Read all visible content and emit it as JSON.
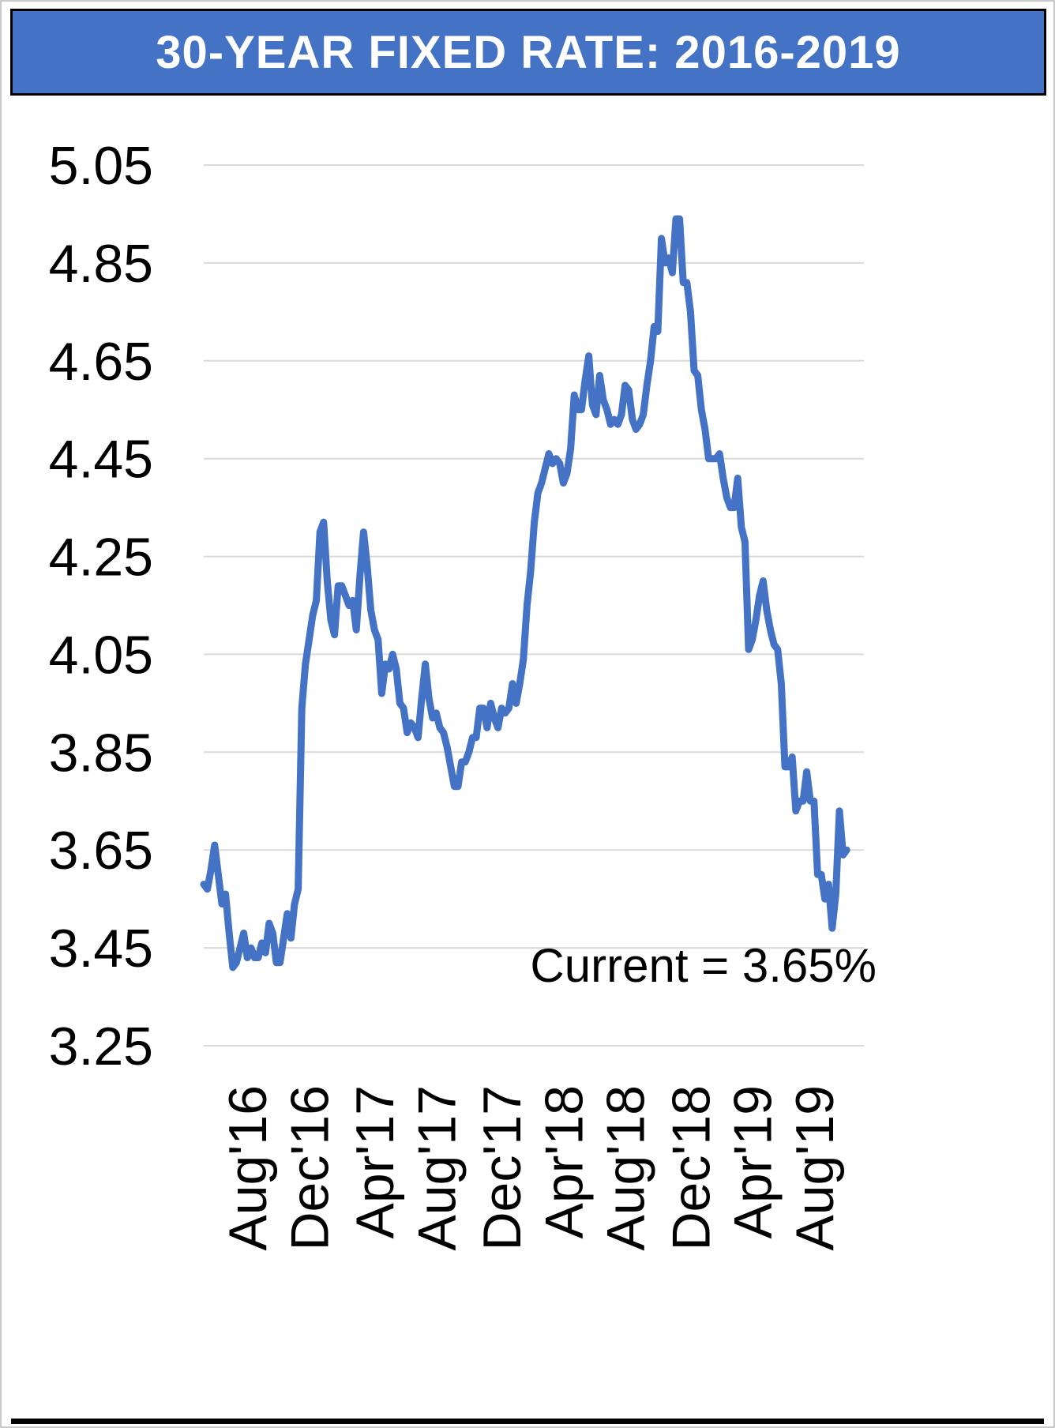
{
  "chart_data": {
    "type": "line",
    "title": "30-YEAR FIXED RATE: 2016-2019",
    "xlabel": "",
    "ylabel": "",
    "ylim": [
      3.25,
      5.05
    ],
    "yticks": [
      5.05,
      4.85,
      4.65,
      4.45,
      4.25,
      4.05,
      3.85,
      3.65,
      3.45,
      3.25
    ],
    "grid": "horizontal",
    "legend": "none",
    "x_description": "weekly 30-year fixed mortgage rate observations, mid-2016 through early Oct 2019",
    "xticks": [
      {
        "label": "Aug'16",
        "index": 12
      },
      {
        "label": "Dec'16",
        "index": 29
      },
      {
        "label": "Apr'17",
        "index": 47
      },
      {
        "label": "Aug'17",
        "index": 64
      },
      {
        "label": "Dec'17",
        "index": 82
      },
      {
        "label": "Apr'18",
        "index": 99
      },
      {
        "label": "Aug'18",
        "index": 116
      },
      {
        "label": "Dec'18",
        "index": 134
      },
      {
        "label": "Apr'19",
        "index": 151
      },
      {
        "label": "Aug'19",
        "index": 168
      }
    ],
    "values": [
      3.58,
      3.57,
      3.61,
      3.66,
      3.6,
      3.54,
      3.56,
      3.48,
      3.41,
      3.42,
      3.45,
      3.48,
      3.43,
      3.45,
      3.43,
      3.43,
      3.46,
      3.44,
      3.5,
      3.48,
      3.42,
      3.42,
      3.47,
      3.52,
      3.47,
      3.54,
      3.57,
      3.94,
      4.03,
      4.08,
      4.13,
      4.16,
      4.3,
      4.32,
      4.2,
      4.12,
      4.09,
      4.19,
      4.19,
      4.17,
      4.15,
      4.16,
      4.1,
      4.21,
      4.3,
      4.23,
      4.14,
      4.1,
      4.08,
      3.97,
      4.03,
      4.02,
      4.05,
      4.02,
      3.95,
      3.94,
      3.89,
      3.91,
      3.9,
      3.88,
      3.96,
      4.03,
      3.96,
      3.92,
      3.93,
      3.9,
      3.89,
      3.86,
      3.82,
      3.78,
      3.78,
      3.83,
      3.83,
      3.85,
      3.88,
      3.88,
      3.94,
      3.94,
      3.9,
      3.95,
      3.92,
      3.9,
      3.94,
      3.93,
      3.94,
      3.99,
      3.95,
      3.99,
      4.04,
      4.15,
      4.22,
      4.32,
      4.38,
      4.4,
      4.43,
      4.46,
      4.44,
      4.45,
      4.44,
      4.4,
      4.42,
      4.47,
      4.58,
      4.55,
      4.55,
      4.61,
      4.66,
      4.56,
      4.54,
      4.62,
      4.57,
      4.55,
      4.52,
      4.53,
      4.52,
      4.54,
      4.6,
      4.59,
      4.53,
      4.51,
      4.52,
      4.54,
      4.6,
      4.65,
      4.72,
      4.71,
      4.9,
      4.85,
      4.86,
      4.83,
      4.94,
      4.94,
      4.81,
      4.81,
      4.75,
      4.63,
      4.62,
      4.55,
      4.51,
      4.45,
      4.45,
      4.45,
      4.46,
      4.41,
      4.37,
      4.35,
      4.35,
      4.41,
      4.31,
      4.28,
      4.06,
      4.08,
      4.12,
      4.17,
      4.2,
      4.14,
      4.1,
      4.07,
      4.06,
      3.99,
      3.82,
      3.82,
      3.84,
      3.73,
      3.75,
      3.75,
      3.81,
      3.75,
      3.75,
      3.6,
      3.6,
      3.55,
      3.58,
      3.49,
      3.56,
      3.73,
      3.64,
      3.65
    ],
    "annotation": {
      "text": "Current = 3.65%",
      "value": 3.65
    }
  },
  "colors": {
    "header_bg": "#4472C4",
    "header_text": "#FFFFFF",
    "line": "#4472C4",
    "grid": "#DADADA",
    "axis_text": "#000000"
  }
}
